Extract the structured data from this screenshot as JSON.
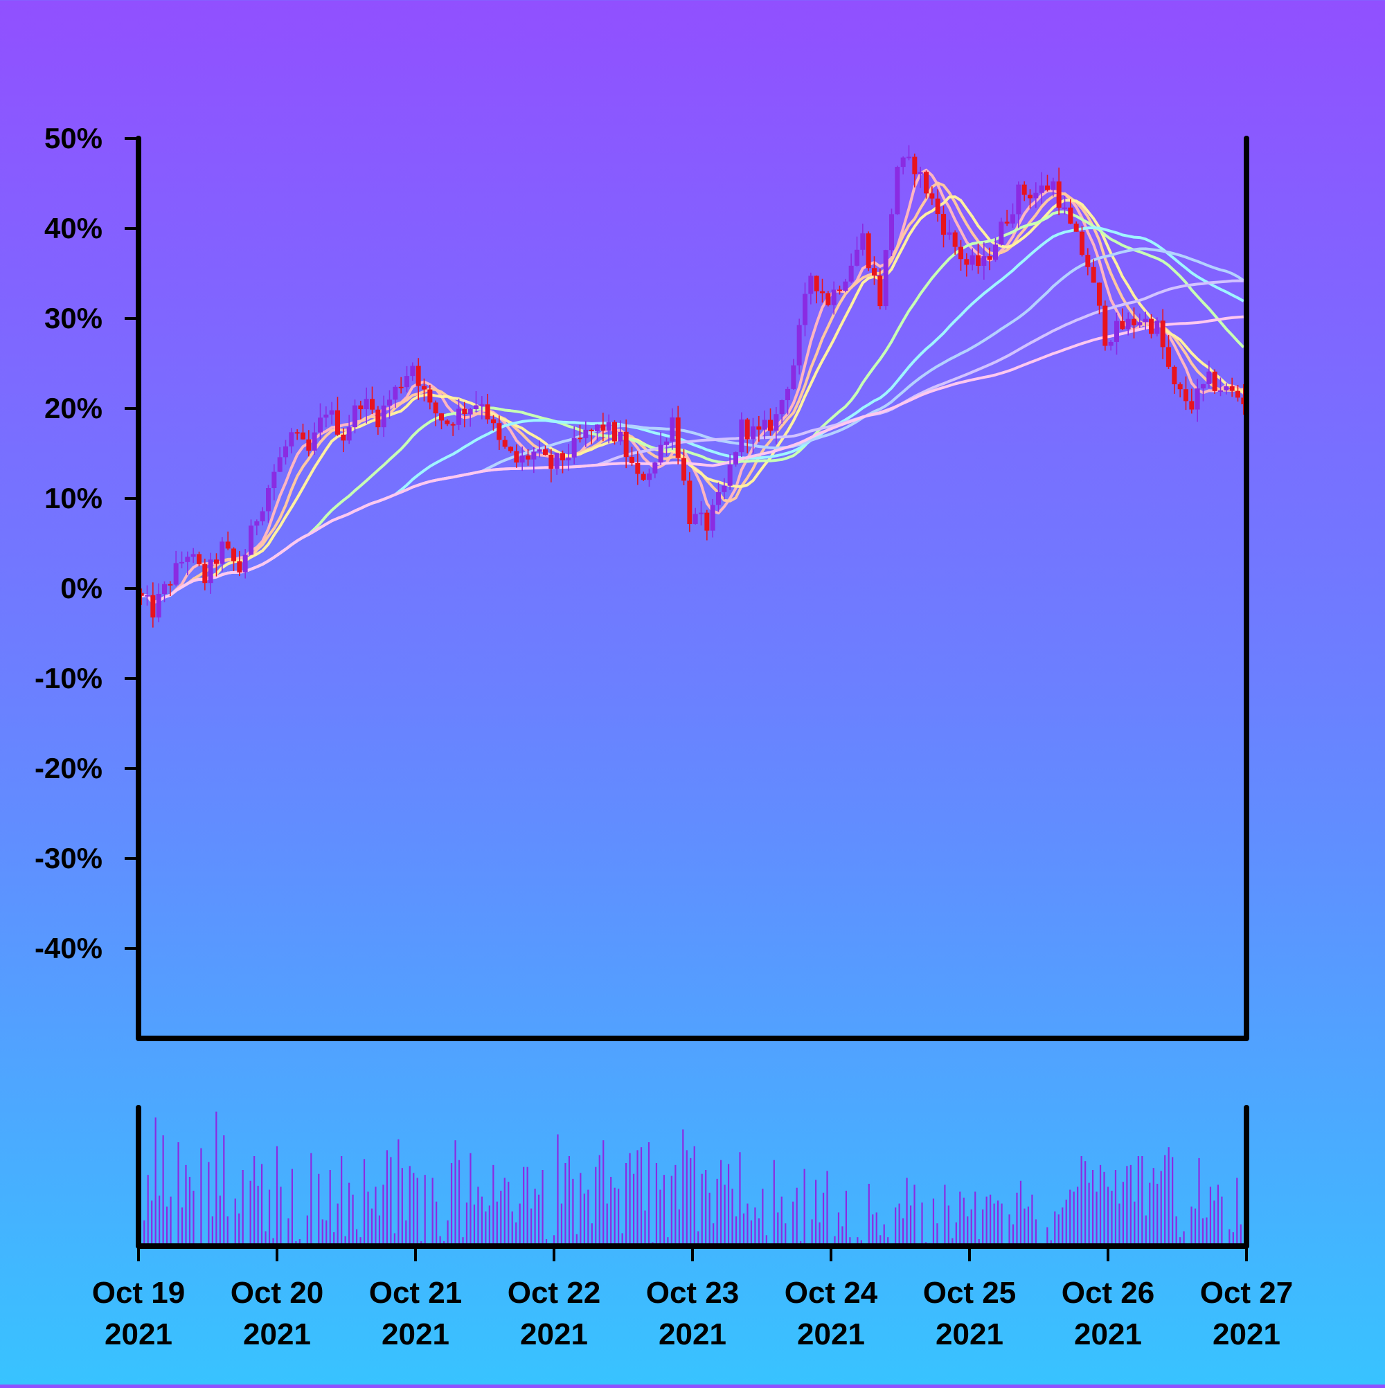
{
  "chart_data": {
    "type": "candlestick",
    "title": "",
    "xlabel": "",
    "ylabel": "",
    "y_unit": "%",
    "ylim": [
      -50,
      50
    ],
    "y_ticks": [
      50,
      40,
      30,
      20,
      10,
      0,
      -10,
      -20,
      -30,
      -40
    ],
    "y_tick_labels": [
      "50%",
      "40%",
      "30%",
      "20%",
      "10%",
      "0%",
      "-10%",
      "-20%",
      "-30%",
      "-40%"
    ],
    "x_range": [
      "2021-10-19",
      "2021-10-27"
    ],
    "x_ticks": [
      {
        "date": "2021-10-19",
        "line1": "Oct 19",
        "line2": "2021"
      },
      {
        "date": "2021-10-20",
        "line1": "Oct 20",
        "line2": "2021"
      },
      {
        "date": "2021-10-21",
        "line1": "Oct 21",
        "line2": "2021"
      },
      {
        "date": "2021-10-22",
        "line1": "Oct 22",
        "line2": "2021"
      },
      {
        "date": "2021-10-23",
        "line1": "Oct 23",
        "line2": "2021"
      },
      {
        "date": "2021-10-24",
        "line1": "Oct 24",
        "line2": "2021"
      },
      {
        "date": "2021-10-25",
        "line1": "Oct 25",
        "line2": "2021"
      },
      {
        "date": "2021-10-26",
        "line1": "Oct 26",
        "line2": "2021"
      },
      {
        "date": "2021-10-27",
        "line1": "Oct 27",
        "line2": "2021"
      }
    ],
    "price_path": [
      [
        "2021-10-19 00:00",
        -0.5
      ],
      [
        "2021-10-19 03:00",
        -2.5
      ],
      [
        "2021-10-19 06:00",
        1.0
      ],
      [
        "2021-10-19 09:00",
        4.0
      ],
      [
        "2021-10-19 12:00",
        1.0
      ],
      [
        "2021-10-19 15:00",
        4.5
      ],
      [
        "2021-10-19 18:00",
        2.0
      ],
      [
        "2021-10-19 21:00",
        8.0
      ],
      [
        "2021-10-20 00:00",
        13.0
      ],
      [
        "2021-10-20 03:00",
        17.0
      ],
      [
        "2021-10-20 06:00",
        15.0
      ],
      [
        "2021-10-20 09:00",
        20.0
      ],
      [
        "2021-10-20 12:00",
        17.0
      ],
      [
        "2021-10-20 15:00",
        21.0
      ],
      [
        "2021-10-20 18:00",
        19.0
      ],
      [
        "2021-10-20 21:00",
        22.0
      ],
      [
        "2021-10-21 00:00",
        25.0
      ],
      [
        "2021-10-21 03:00",
        20.0
      ],
      [
        "2021-10-21 06:00",
        18.5
      ],
      [
        "2021-10-21 09:00",
        20.0
      ],
      [
        "2021-10-21 12:00",
        21.0
      ],
      [
        "2021-10-21 15:00",
        16.0
      ],
      [
        "2021-10-21 18:00",
        14.0
      ],
      [
        "2021-10-21 21:00",
        15.0
      ],
      [
        "2021-10-22 00:00",
        13.5
      ],
      [
        "2021-10-22 03:00",
        15.0
      ],
      [
        "2021-10-22 06:00",
        17.0
      ],
      [
        "2021-10-22 09:00",
        18.0
      ],
      [
        "2021-10-22 12:00",
        16.5
      ],
      [
        "2021-10-22 15:00",
        12.0
      ],
      [
        "2021-10-22 18:00",
        14.0
      ],
      [
        "2021-10-22 21:00",
        19.0
      ],
      [
        "2021-10-23 00:00",
        8.0
      ],
      [
        "2021-10-23 03:00",
        7.0
      ],
      [
        "2021-10-23 06:00",
        11.0
      ],
      [
        "2021-10-23 09:00",
        18.0
      ],
      [
        "2021-10-23 12:00",
        17.0
      ],
      [
        "2021-10-23 15:00",
        19.0
      ],
      [
        "2021-10-23 18:00",
        25.0
      ],
      [
        "2021-10-23 21:00",
        35.0
      ],
      [
        "2021-10-24 00:00",
        32.0
      ],
      [
        "2021-10-24 03:00",
        35.0
      ],
      [
        "2021-10-24 06:00",
        39.0
      ],
      [
        "2021-10-24 09:00",
        32.0
      ],
      [
        "2021-10-24 12:00",
        47.0
      ],
      [
        "2021-10-24 15:00",
        47.0
      ],
      [
        "2021-10-24 18:00",
        43.0
      ],
      [
        "2021-10-24 21:00",
        39.0
      ],
      [
        "2021-10-25 00:00",
        36.0
      ],
      [
        "2021-10-25 03:00",
        36.0
      ],
      [
        "2021-10-25 06:00",
        40.0
      ],
      [
        "2021-10-25 09:00",
        44.0
      ],
      [
        "2021-10-25 12:00",
        44.0
      ],
      [
        "2021-10-25 15:00",
        45.0
      ],
      [
        "2021-10-25 18:00",
        40.0
      ],
      [
        "2021-10-25 21:00",
        36.0
      ],
      [
        "2021-10-26 00:00",
        28.0
      ],
      [
        "2021-10-26 03:00",
        29.0
      ],
      [
        "2021-10-26 06:00",
        30.0
      ],
      [
        "2021-10-26 09:00",
        29.0
      ],
      [
        "2021-10-26 12:00",
        22.0
      ],
      [
        "2021-10-26 15:00",
        20.5
      ],
      [
        "2021-10-26 18:00",
        23.0
      ],
      [
        "2021-10-26 21:00",
        22.0
      ],
      [
        "2021-10-27 00:00",
        21.0
      ]
    ],
    "moving_average_windows_hours": [
      6,
      9,
      12,
      30,
      45,
      60,
      80,
      100
    ],
    "colors": {
      "up": "#8a2be2",
      "down": "#e8141e",
      "volume": "#8a2be2",
      "axis": "#000000",
      "ma_lines": [
        "#ffb6c1",
        "#ffc8a2",
        "#fff0a0",
        "#c8ffb4",
        "#a0f5ff",
        "#b4d2ff",
        "#d2c3ff",
        "#ffc8f0"
      ]
    },
    "volume": [
      60,
      26,
      72,
      46,
      130,
      51,
      112,
      40,
      50,
      0,
      105,
      39,
      82,
      70,
      56,
      1,
      99,
      0,
      85,
      30,
      136,
      51,
      112,
      30,
      1,
      48,
      33,
      77,
      1,
      66,
      91,
      61,
      83,
      15,
      57,
      8,
      101,
      60,
      1,
      28,
      78,
      5,
      7,
      0,
      31,
      94,
      1,
      73,
      27,
      26,
      77,
      14,
      43,
      91,
      10,
      64,
      52,
      17,
      9,
      88,
      55,
      38,
      60,
      31,
      62,
      97,
      90,
      13,
      108,
      79,
      26,
      81,
      74,
      69,
      5,
      72,
      0,
      69,
      45,
      10,
      5,
      26,
      84,
      107,
      87,
      9,
      44,
      94,
      42,
      60,
      50,
      35,
      41,
      82,
      45,
      56,
      69,
      65,
      35,
      24,
      43,
      80,
      80,
      38,
      58,
      52,
      77,
      7,
      0,
      11,
      113,
      43,
      84,
      91,
      68,
      12,
      74,
      53,
      57,
      23,
      80,
      92,
      107,
      43,
      70,
      59,
      58,
      13,
      84,
      94,
      73,
      97,
      100,
      36,
      105,
      4,
      84,
      57,
      72,
      9,
      71,
      82,
      37,
      118,
      97,
      89,
      101,
      15,
      73,
      77,
      54,
      23,
      68,
      87,
      62,
      83,
      58,
      30,
      95,
      33,
      43,
      26,
      39,
      28,
      58,
      11,
      0,
      87,
      34,
      50,
      23,
      1,
      45,
      59,
      5,
      78,
      1,
      27,
      67,
      24,
      54,
      76,
      2,
      10,
      34,
      20,
      56,
      9,
      0,
      9,
      6,
      0,
      63,
      32,
      34,
      11,
      22,
      9,
      2,
      39,
      43,
      28,
      69,
      41,
      62,
      2,
      44,
      4,
      3,
      48,
      23,
      0,
      62,
      41,
      8,
      24,
      55,
      49,
      30,
      37,
      55,
      7,
      37,
      50,
      52,
      43,
      46,
      43,
      0,
      32,
      22,
      54,
      66,
      38,
      40,
      52,
      27,
      3,
      1,
      19,
      6,
      35,
      32,
      39,
      47,
      57,
      55,
      60,
      91,
      86,
      64,
      77,
      55,
      82,
      75,
      60,
      56,
      77,
      43,
      65,
      81,
      82,
      45,
      91,
      91,
      31,
      64,
      79,
      63,
      76,
      92,
      100,
      90,
      30,
      9,
      15,
      0,
      40,
      38,
      89,
      28,
      29,
      60,
      46,
      62,
      50,
      3,
      17,
      14,
      69,
      22,
      48
    ]
  }
}
